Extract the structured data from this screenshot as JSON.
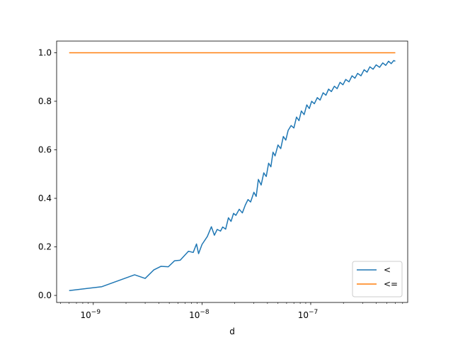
{
  "chart_data": {
    "type": "line",
    "title": "",
    "xlabel": "d",
    "ylabel": "",
    "xscale": "log",
    "xlim": [
      4.6e-10,
      7.8e-07
    ],
    "ylim": [
      -0.029,
      1.048
    ],
    "grid": false,
    "legend_position": "lower right",
    "x_ticks": [
      {
        "value": 1e-09,
        "base": "10",
        "exp": "−9"
      },
      {
        "value": 1e-08,
        "base": "10",
        "exp": "−8"
      },
      {
        "value": 1e-07,
        "base": "10",
        "exp": "−7"
      }
    ],
    "y_ticks": [
      {
        "value": 0.0,
        "label": "0.0"
      },
      {
        "value": 0.2,
        "label": "0.2"
      },
      {
        "value": 0.4,
        "label": "0.4"
      },
      {
        "value": 0.6,
        "label": "0.6"
      },
      {
        "value": 0.8,
        "label": "0.8"
      },
      {
        "value": 1.0,
        "label": "1.0"
      }
    ],
    "series": [
      {
        "name": "<",
        "color": "#1f77b4",
        "points": [
          [
            6e-10,
            0.02
          ],
          [
            1.2e-09,
            0.036
          ],
          [
            2.4e-09,
            0.085
          ],
          [
            3e-09,
            0.07
          ],
          [
            3.6e-09,
            0.105
          ],
          [
            4.2e-09,
            0.12
          ],
          [
            4.9e-09,
            0.118
          ],
          [
            5.6e-09,
            0.143
          ],
          [
            6.3e-09,
            0.145
          ],
          [
            7.5e-09,
            0.182
          ],
          [
            8.3e-09,
            0.177
          ],
          [
            8.9e-09,
            0.212
          ],
          [
            9.3e-09,
            0.172
          ],
          [
            1e-08,
            0.21
          ],
          [
            1.12e-08,
            0.243
          ],
          [
            1.22e-08,
            0.283
          ],
          [
            1.3e-08,
            0.248
          ],
          [
            1.38e-08,
            0.272
          ],
          [
            1.48e-08,
            0.265
          ],
          [
            1.55e-08,
            0.282
          ],
          [
            1.65e-08,
            0.273
          ],
          [
            1.75e-08,
            0.32
          ],
          [
            1.85e-08,
            0.305
          ],
          [
            1.95e-08,
            0.338
          ],
          [
            2.05e-08,
            0.33
          ],
          [
            2.2e-08,
            0.355
          ],
          [
            2.35e-08,
            0.34
          ],
          [
            2.5e-08,
            0.372
          ],
          [
            2.65e-08,
            0.395
          ],
          [
            2.8e-08,
            0.385
          ],
          [
            3e-08,
            0.425
          ],
          [
            3.15e-08,
            0.408
          ],
          [
            3.3e-08,
            0.478
          ],
          [
            3.5e-08,
            0.455
          ],
          [
            3.7e-08,
            0.505
          ],
          [
            3.9e-08,
            0.49
          ],
          [
            4.1e-08,
            0.545
          ],
          [
            4.3e-08,
            0.53
          ],
          [
            4.5e-08,
            0.59
          ],
          [
            4.7e-08,
            0.575
          ],
          [
            5e-08,
            0.62
          ],
          [
            5.3e-08,
            0.605
          ],
          [
            5.6e-08,
            0.655
          ],
          [
            5.9e-08,
            0.64
          ],
          [
            6.2e-08,
            0.68
          ],
          [
            6.6e-08,
            0.7
          ],
          [
            7e-08,
            0.69
          ],
          [
            7.4e-08,
            0.735
          ],
          [
            7.8e-08,
            0.72
          ],
          [
            8.2e-08,
            0.76
          ],
          [
            8.7e-08,
            0.745
          ],
          [
            9.2e-08,
            0.785
          ],
          [
            9.7e-08,
            0.77
          ],
          [
            1.02e-07,
            0.8
          ],
          [
            1.08e-07,
            0.79
          ],
          [
            1.15e-07,
            0.815
          ],
          [
            1.22e-07,
            0.805
          ],
          [
            1.3e-07,
            0.835
          ],
          [
            1.38e-07,
            0.825
          ],
          [
            1.46e-07,
            0.85
          ],
          [
            1.55e-07,
            0.84
          ],
          [
            1.65e-07,
            0.862
          ],
          [
            1.75e-07,
            0.852
          ],
          [
            1.86e-07,
            0.878
          ],
          [
            1.98e-07,
            0.868
          ],
          [
            2.1e-07,
            0.89
          ],
          [
            2.25e-07,
            0.88
          ],
          [
            2.4e-07,
            0.905
          ],
          [
            2.55e-07,
            0.895
          ],
          [
            2.7e-07,
            0.915
          ],
          [
            2.9e-07,
            0.905
          ],
          [
            3.1e-07,
            0.93
          ],
          [
            3.3e-07,
            0.92
          ],
          [
            3.5e-07,
            0.942
          ],
          [
            3.75e-07,
            0.932
          ],
          [
            4e-07,
            0.95
          ],
          [
            4.3e-07,
            0.94
          ],
          [
            4.6e-07,
            0.958
          ],
          [
            4.9e-07,
            0.948
          ],
          [
            5.2e-07,
            0.965
          ],
          [
            5.5e-07,
            0.955
          ],
          [
            5.8e-07,
            0.968
          ],
          [
            6e-07,
            0.965
          ]
        ]
      },
      {
        "name": "<=",
        "color": "#ff7f0e",
        "points": [
          [
            6e-10,
            1.0
          ],
          [
            6e-07,
            1.0
          ]
        ]
      }
    ]
  }
}
